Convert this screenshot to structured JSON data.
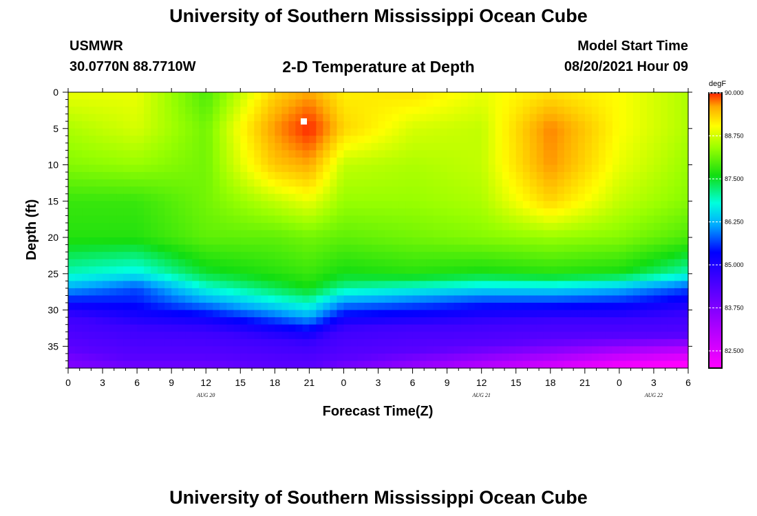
{
  "header": {
    "title": "University of Southern Mississippi Ocean Cube",
    "station": "USMWR",
    "coords": "30.0770N  88.7710W",
    "subtitle": "2-D Temperature at Depth",
    "model_start_label": "Model Start Time",
    "model_start_time": "08/20/2021 Hour 09"
  },
  "footer": {
    "title": "University of Southern Mississippi Ocean Cube"
  },
  "chart_data": {
    "type": "heatmap",
    "title": "2-D Temperature at Depth",
    "xlabel": "Forecast Time(Z)",
    "ylabel": "Depth (ft)",
    "x_tick_labels": [
      "0",
      "3",
      "6",
      "9",
      "12",
      "15",
      "18",
      "21",
      "0",
      "3",
      "6",
      "9",
      "12",
      "15",
      "18",
      "21",
      "0",
      "3",
      "6"
    ],
    "x_range_hours": [
      0,
      54
    ],
    "date_labels": [
      {
        "text": "AUG 20",
        "hour": 12
      },
      {
        "text": "AUG 21",
        "hour": 36
      },
      {
        "text": "AUG 22",
        "hour": 51
      }
    ],
    "y_tick_labels": [
      "0",
      "5",
      "10",
      "15",
      "20",
      "25",
      "30",
      "35"
    ],
    "y_range_ft": [
      0,
      38
    ],
    "colorbar": {
      "unit": "degF",
      "labels": [
        "90.000",
        "88.750",
        "87.500",
        "86.250",
        "85.000",
        "83.750",
        "82.500"
      ],
      "range": [
        82.0,
        90.0
      ]
    },
    "grid": {
      "time_hours": [
        0,
        6,
        12,
        18,
        21,
        24,
        30,
        36,
        42,
        48,
        54
      ],
      "depth_ft": [
        0,
        5,
        10,
        15,
        20,
        25,
        27,
        29,
        31,
        33,
        36,
        38
      ],
      "temperature_degF": [
        [
          88.6,
          88.6,
          87.8,
          89.0,
          89.3,
          88.8,
          88.9,
          88.6,
          88.9,
          88.7,
          88.3
        ],
        [
          88.3,
          88.5,
          88.0,
          89.4,
          90.0,
          89.0,
          88.5,
          88.4,
          89.5,
          88.7,
          88.3
        ],
        [
          88.1,
          88.2,
          88.0,
          89.1,
          89.3,
          88.4,
          88.3,
          88.4,
          89.4,
          88.6,
          88.2
        ],
        [
          87.7,
          87.7,
          88.0,
          88.4,
          88.6,
          88.2,
          88.2,
          88.3,
          89.0,
          88.4,
          88.1
        ],
        [
          87.6,
          87.6,
          87.9,
          87.9,
          88.0,
          87.9,
          88.0,
          88.1,
          88.2,
          88.1,
          87.8
        ],
        [
          87.0,
          86.8,
          87.4,
          87.6,
          87.7,
          87.5,
          87.6,
          87.5,
          87.6,
          87.5,
          87.0
        ],
        [
          86.4,
          86.0,
          86.9,
          87.3,
          87.5,
          87.1,
          86.9,
          86.7,
          86.7,
          86.5,
          86.0
        ],
        [
          85.7,
          85.8,
          86.3,
          86.8,
          87.0,
          86.3,
          86.1,
          85.9,
          85.9,
          85.8,
          85.5
        ],
        [
          85.0,
          85.4,
          85.6,
          86.1,
          86.4,
          85.6,
          85.5,
          85.3,
          85.2,
          85.2,
          84.9
        ],
        [
          84.5,
          84.9,
          85.0,
          85.4,
          85.6,
          84.9,
          84.7,
          84.6,
          84.4,
          84.4,
          84.3
        ],
        [
          83.8,
          84.2,
          84.2,
          84.5,
          84.6,
          84.2,
          83.9,
          83.6,
          83.3,
          82.9,
          82.6
        ],
        [
          83.5,
          83.7,
          83.7,
          83.9,
          83.9,
          83.6,
          83.2,
          82.8,
          82.4,
          82.0,
          81.8
        ]
      ]
    }
  }
}
